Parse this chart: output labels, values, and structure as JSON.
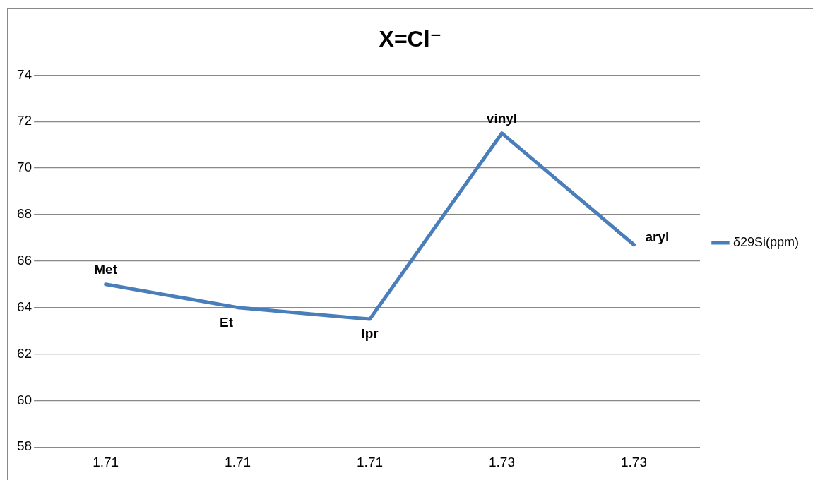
{
  "chart_data": {
    "type": "line",
    "title": "X=Cl⁻",
    "categories": [
      "1.71",
      "1.71",
      "1.71",
      "1.73",
      "1.73"
    ],
    "series": [
      {
        "name": "δ29Si(ppm)",
        "color": "#4a7ebb",
        "values": [
          65,
          64,
          63.5,
          71.5,
          66.7
        ],
        "value_labels": [
          "Met",
          "Et",
          "Ipr",
          "vinyl",
          "aryl"
        ]
      }
    ],
    "ylim": [
      58,
      74
    ],
    "yticks": [
      58,
      60,
      62,
      64,
      66,
      68,
      70,
      72,
      74
    ],
    "grid": "y",
    "legend": "right",
    "marker": "none"
  }
}
